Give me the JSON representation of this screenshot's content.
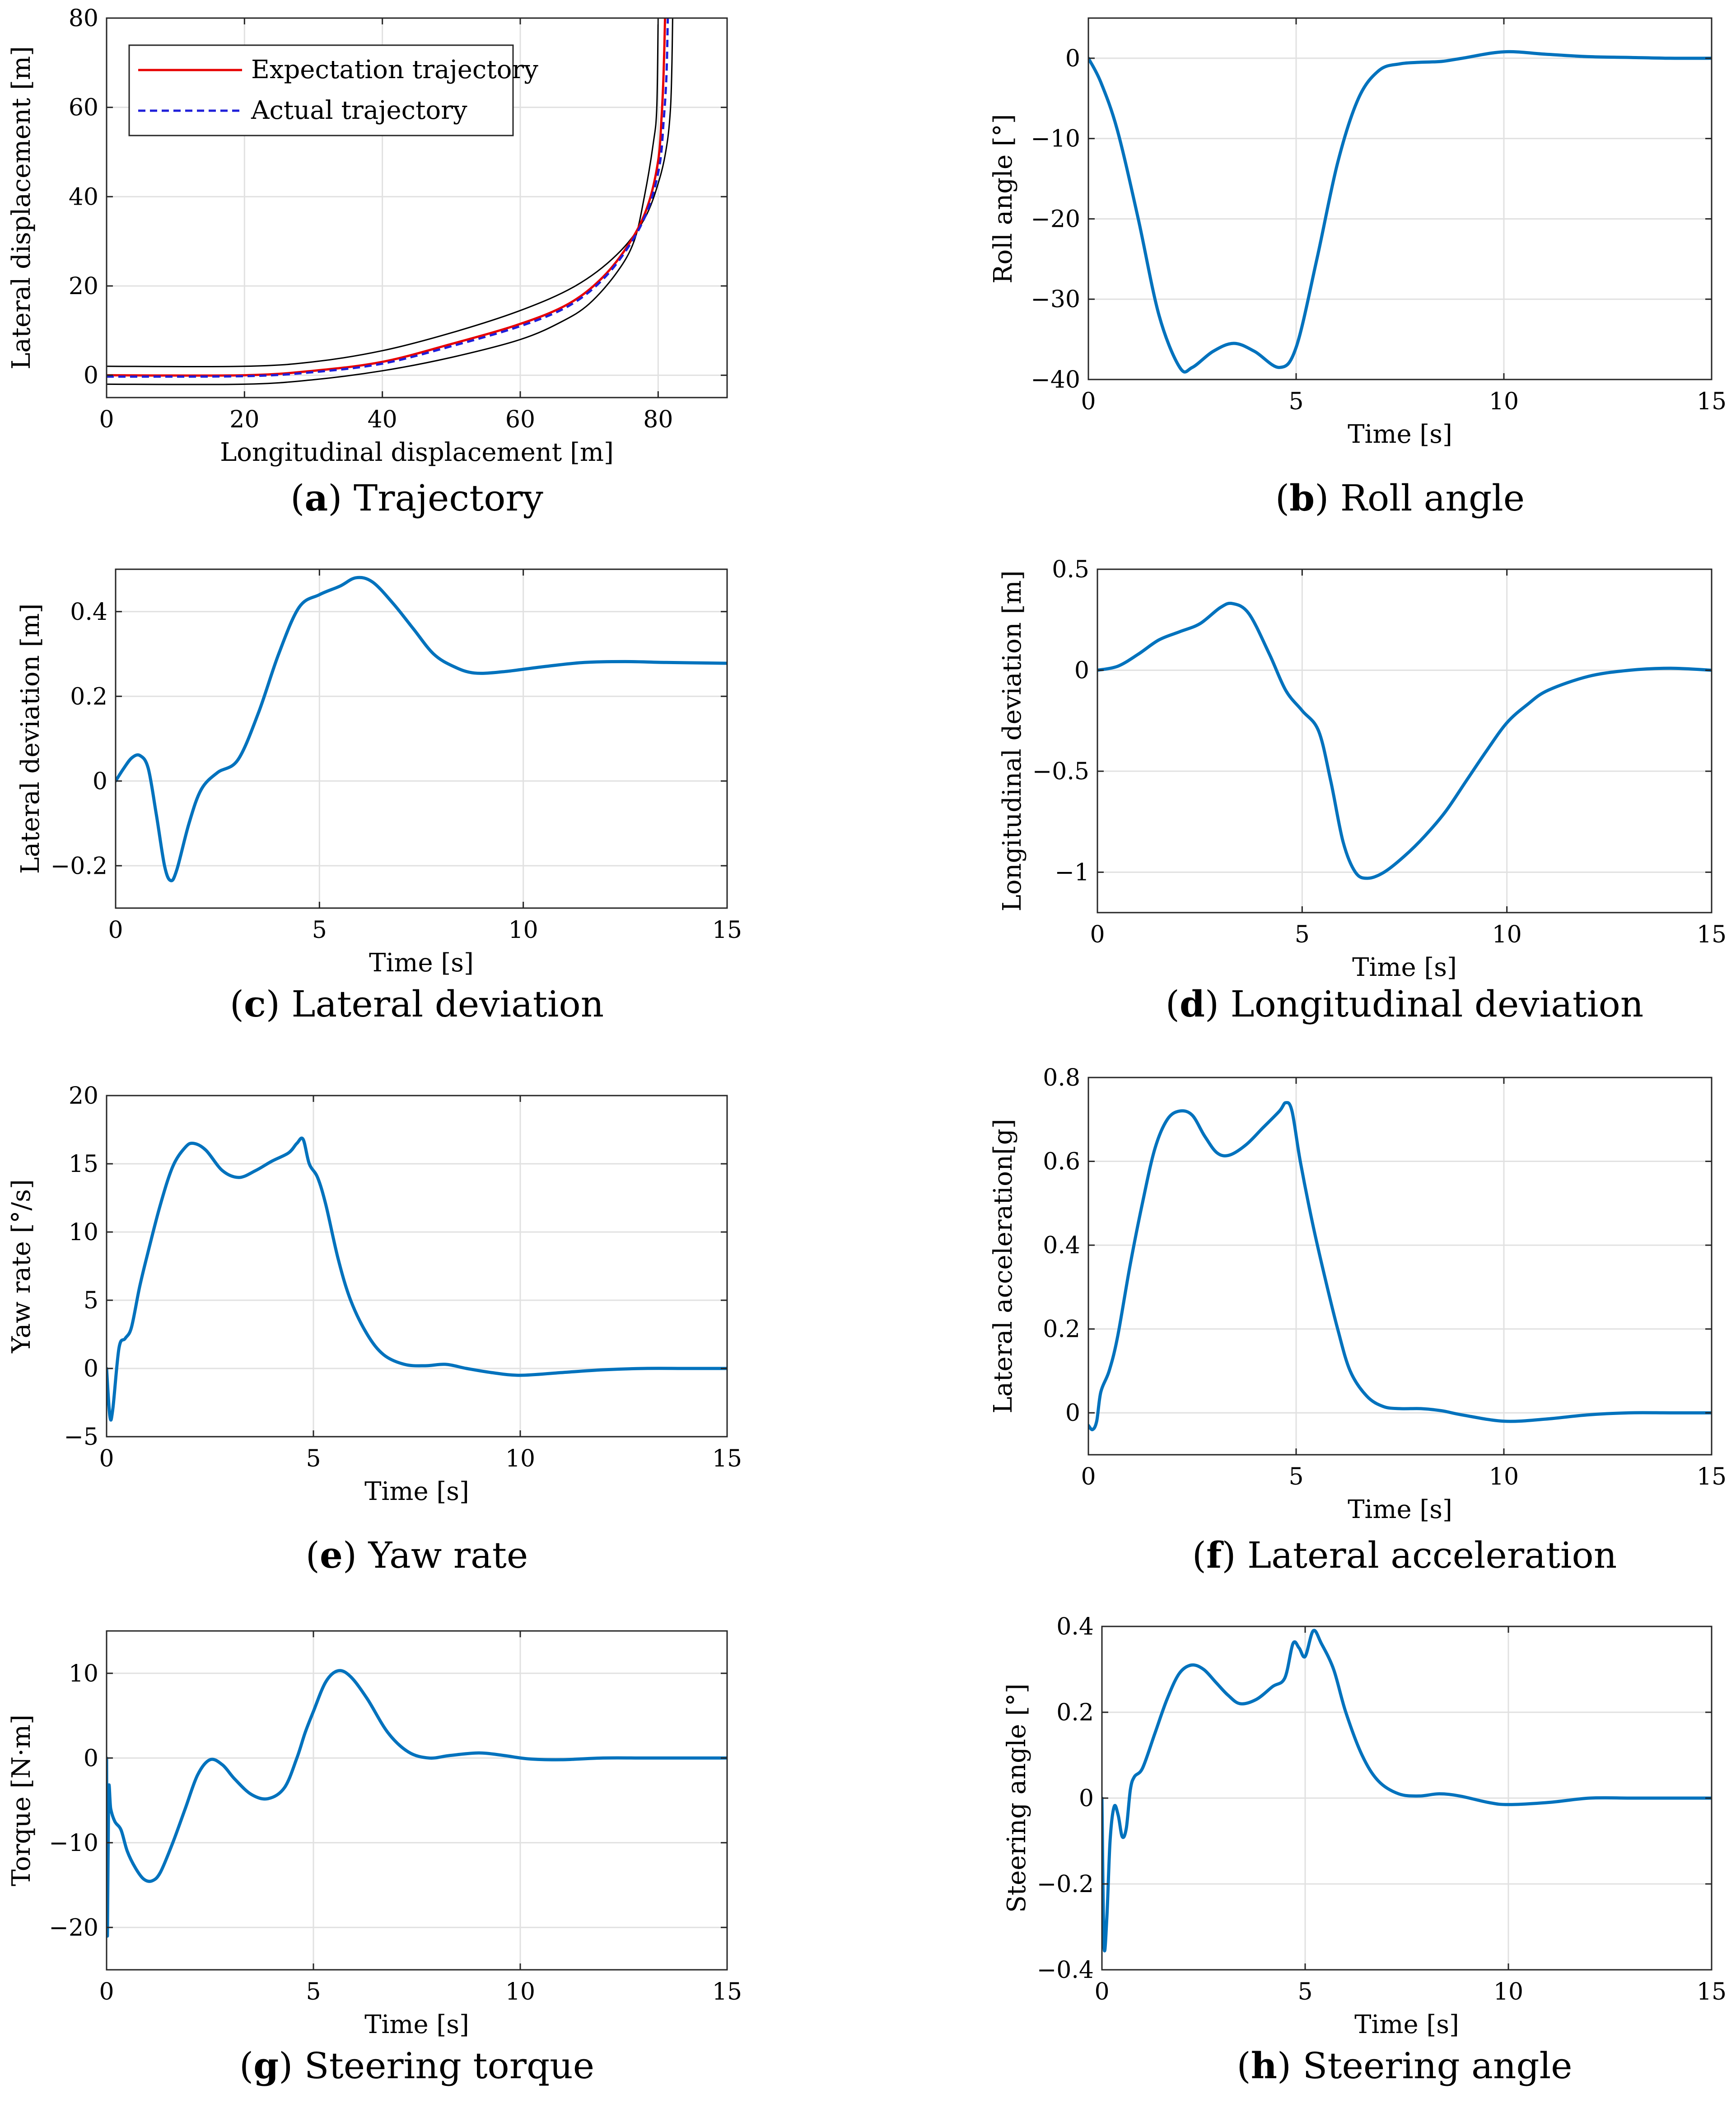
{
  "chart_data": [
    {
      "id": "a",
      "type": "line",
      "caption_letter": "a",
      "caption_text": "Trajectory",
      "xlabel": "Longitudinal displacement [m]",
      "ylabel": "Lateral displacement [m]",
      "xlim": [
        0,
        90
      ],
      "ylim": [
        -5,
        80
      ],
      "xticks": [
        0,
        20,
        40,
        60,
        80
      ],
      "xtick_labels": [
        "0",
        "20",
        "40",
        "60",
        "80"
      ],
      "yticks": [
        0,
        20,
        40,
        60,
        80
      ],
      "ytick_labels": [
        "0",
        "20",
        "40",
        "60",
        "80"
      ],
      "grid": true,
      "legend_position": "top-left",
      "series": [
        {
          "name": "road-outer-edge",
          "legend": false,
          "color": "#000000",
          "width": 3,
          "dash": "",
          "x": [
            0,
            20,
            30,
            40,
            50,
            60,
            66,
            70,
            74,
            76.5,
            78,
            79.3,
            79.8,
            80
          ],
          "y": [
            -2,
            -2,
            -1,
            1,
            4,
            8,
            12,
            16,
            23,
            30,
            40,
            52,
            60,
            80
          ]
        },
        {
          "name": "road-inner-edge",
          "legend": false,
          "color": "#000000",
          "width": 3,
          "dash": "",
          "x": [
            0,
            20,
            30,
            40,
            50,
            60,
            68,
            74,
            78,
            80.2,
            81.3,
            81.8,
            82,
            82.1
          ],
          "y": [
            2,
            2,
            3,
            5.5,
            9.5,
            14.5,
            20,
            27,
            35,
            44,
            52,
            60,
            70,
            80
          ]
        },
        {
          "name": "Expectation trajectory",
          "legend": true,
          "color": "#e60000",
          "width": 5,
          "dash": "",
          "x": [
            0,
            20,
            30,
            40,
            50,
            60,
            67,
            72,
            76,
            78.5,
            80,
            80.5,
            80.8,
            81
          ],
          "y": [
            0,
            0,
            1,
            3,
            7,
            11.5,
            16,
            22,
            30,
            38,
            48,
            58,
            68,
            80
          ]
        },
        {
          "name": "Actual trajectory",
          "legend": true,
          "color": "#1f1fd9",
          "width": 5,
          "dash": "16,10",
          "x": [
            0,
            20,
            30,
            40,
            50,
            60,
            67,
            72,
            76,
            78.6,
            80.2,
            80.8,
            81.2,
            81.4
          ],
          "y": [
            -0.3,
            -0.2,
            0.7,
            2.6,
            6.5,
            11,
            15.5,
            21.5,
            29.5,
            37.5,
            47,
            57,
            67,
            80
          ]
        }
      ]
    },
    {
      "id": "b",
      "type": "line",
      "caption_letter": "b",
      "caption_text": "Roll angle",
      "xlabel": "Time [s]",
      "ylabel": "Roll angle [°]",
      "xlim": [
        0,
        15
      ],
      "ylim": [
        -40,
        5
      ],
      "xticks": [
        0,
        5,
        10,
        15
      ],
      "xtick_labels": [
        "0",
        "5",
        "10",
        "15"
      ],
      "yticks": [
        -40,
        -30,
        -20,
        -10,
        0
      ],
      "ytick_labels": [
        "−40",
        "−30",
        "−20",
        "−10",
        "0"
      ],
      "grid": true,
      "series": [
        {
          "name": "roll",
          "color": "#0072bd",
          "width": 7,
          "x": [
            0,
            0.3,
            0.7,
            1.2,
            1.7,
            2.2,
            2.5,
            3,
            3.5,
            4,
            4.6,
            5,
            5.5,
            6,
            6.5,
            7,
            7.5,
            8,
            8.5,
            9,
            10,
            11,
            12,
            13,
            14,
            15
          ],
          "y": [
            0,
            -3,
            -9,
            -20,
            -32,
            -38.5,
            -38.5,
            -36.5,
            -35.5,
            -36.5,
            -38.5,
            -36,
            -25,
            -13,
            -5,
            -1.5,
            -0.7,
            -0.5,
            -0.4,
            0,
            0.8,
            0.5,
            0.2,
            0.1,
            0,
            0
          ]
        }
      ]
    },
    {
      "id": "c",
      "type": "line",
      "caption_letter": "c",
      "caption_text": "Lateral deviation",
      "xlabel": "Time [s]",
      "ylabel": "Lateral deviation [m]",
      "xlim": [
        0,
        15
      ],
      "ylim": [
        -0.3,
        0.5
      ],
      "xticks": [
        0,
        5,
        10,
        15
      ],
      "xtick_labels": [
        "0",
        "5",
        "10",
        "15"
      ],
      "yticks": [
        -0.2,
        0,
        0.2,
        0.4
      ],
      "ytick_labels": [
        "−0.2",
        "0",
        "0.2",
        "0.4"
      ],
      "grid": true,
      "series": [
        {
          "name": "lateral-deviation",
          "color": "#0072bd",
          "width": 7,
          "x": [
            0,
            0.2,
            0.4,
            0.6,
            0.8,
            1.0,
            1.2,
            1.35,
            1.5,
            1.8,
            2.1,
            2.5,
            3.0,
            3.5,
            4.0,
            4.5,
            5.0,
            5.5,
            5.9,
            6.3,
            6.8,
            7.3,
            7.8,
            8.3,
            8.8,
            9.5,
            10.5,
            11.5,
            12.5,
            13.5,
            15
          ],
          "y": [
            0,
            0.03,
            0.055,
            0.06,
            0.03,
            -0.08,
            -0.2,
            -0.235,
            -0.21,
            -0.1,
            -0.02,
            0.02,
            0.05,
            0.16,
            0.3,
            0.41,
            0.44,
            0.46,
            0.48,
            0.47,
            0.42,
            0.36,
            0.3,
            0.27,
            0.255,
            0.258,
            0.27,
            0.28,
            0.282,
            0.28,
            0.278
          ]
        }
      ]
    },
    {
      "id": "d",
      "type": "line",
      "caption_letter": "d",
      "caption_text": "Longitudinal deviation",
      "xlabel": "Time [s]",
      "ylabel": "Longitudinal deviation [m]",
      "xlim": [
        0,
        15
      ],
      "ylim": [
        -1.2,
        0.5
      ],
      "xticks": [
        0,
        5,
        10,
        15
      ],
      "xtick_labels": [
        "0",
        "5",
        "10",
        "15"
      ],
      "yticks": [
        -1,
        -0.5,
        0,
        0.5
      ],
      "ytick_labels": [
        "−1",
        "−0.5",
        "0",
        "0.5"
      ],
      "grid": true,
      "series": [
        {
          "name": "longitudinal-deviation",
          "color": "#0072bd",
          "width": 7,
          "x": [
            0,
            0.5,
            1,
            1.5,
            2,
            2.5,
            3,
            3.3,
            3.7,
            4.2,
            4.6,
            5,
            5.4,
            5.7,
            6,
            6.3,
            6.6,
            7,
            7.5,
            8,
            8.5,
            9,
            9.5,
            10,
            10.5,
            11,
            12,
            13,
            14,
            15
          ],
          "y": [
            0,
            0.02,
            0.08,
            0.15,
            0.19,
            0.23,
            0.31,
            0.33,
            0.28,
            0.08,
            -0.1,
            -0.2,
            -0.3,
            -0.55,
            -0.85,
            -1.0,
            -1.03,
            -1.0,
            -0.92,
            -0.82,
            -0.7,
            -0.55,
            -0.4,
            -0.26,
            -0.17,
            -0.1,
            -0.03,
            0,
            0.01,
            0
          ]
        }
      ]
    },
    {
      "id": "e",
      "type": "line",
      "caption_letter": "e",
      "caption_text": "Yaw rate",
      "xlabel": "Time [s]",
      "ylabel": "Yaw rate [°/s]",
      "xlim": [
        0,
        15
      ],
      "ylim": [
        -5,
        20
      ],
      "xticks": [
        0,
        5,
        10,
        15
      ],
      "xtick_labels": [
        "0",
        "5",
        "10",
        "15"
      ],
      "yticks": [
        -5,
        0,
        5,
        10,
        15,
        20
      ],
      "ytick_labels": [
        "−5",
        "0",
        "5",
        "10",
        "15",
        "20"
      ],
      "grid": true,
      "series": [
        {
          "name": "yaw-rate",
          "color": "#0072bd",
          "width": 7,
          "x": [
            0,
            0.08,
            0.15,
            0.3,
            0.45,
            0.6,
            0.8,
            1.0,
            1.3,
            1.6,
            1.9,
            2.1,
            2.4,
            2.8,
            3.2,
            3.6,
            4.0,
            4.4,
            4.6,
            4.75,
            4.9,
            5.1,
            5.3,
            5.6,
            5.9,
            6.3,
            6.7,
            7.2,
            7.7,
            8.2,
            8.7,
            9.3,
            10,
            11,
            12,
            13,
            14,
            15
          ],
          "y": [
            0,
            -3.5,
            -3,
            1.5,
            2.2,
            3,
            6,
            8.5,
            12,
            14.8,
            16.2,
            16.5,
            16,
            14.5,
            14,
            14.5,
            15.2,
            15.8,
            16.5,
            16.8,
            15,
            14,
            12,
            8,
            5,
            2.5,
            1,
            0.3,
            0.2,
            0.3,
            0,
            -0.3,
            -0.5,
            -0.3,
            -0.1,
            0,
            0,
            0
          ]
        }
      ]
    },
    {
      "id": "f",
      "type": "line",
      "caption_letter": "f",
      "caption_text": "Lateral acceleration",
      "xlabel": "Time [s]",
      "ylabel": "Lateral acceleration[g]",
      "xlim": [
        0,
        15
      ],
      "ylim": [
        -0.1,
        0.8
      ],
      "xticks": [
        0,
        5,
        10,
        15
      ],
      "xtick_labels": [
        "0",
        "5",
        "10",
        "15"
      ],
      "yticks": [
        0,
        0.2,
        0.4,
        0.6,
        0.8
      ],
      "ytick_labels": [
        "0",
        "0.2",
        "0.4",
        "0.6",
        "0.8"
      ],
      "grid": true,
      "series": [
        {
          "name": "lateral-acceleration",
          "color": "#0072bd",
          "width": 7,
          "x": [
            0,
            0.1,
            0.2,
            0.3,
            0.5,
            0.7,
            1.0,
            1.3,
            1.6,
            1.9,
            2.2,
            2.5,
            2.8,
            3.1,
            3.4,
            3.8,
            4.2,
            4.6,
            4.75,
            4.9,
            5.1,
            5.4,
            5.7,
            6,
            6.3,
            6.7,
            7.1,
            7.5,
            8,
            8.5,
            9,
            10,
            11,
            12,
            13,
            14,
            15
          ],
          "y": [
            -0.03,
            -0.04,
            -0.02,
            0.05,
            0.1,
            0.18,
            0.35,
            0.5,
            0.63,
            0.7,
            0.72,
            0.71,
            0.66,
            0.62,
            0.615,
            0.64,
            0.68,
            0.72,
            0.74,
            0.72,
            0.6,
            0.45,
            0.32,
            0.2,
            0.1,
            0.04,
            0.015,
            0.01,
            0.01,
            0.005,
            -0.005,
            -0.02,
            -0.015,
            -0.005,
            0,
            0,
            0
          ]
        }
      ]
    },
    {
      "id": "g",
      "type": "line",
      "caption_letter": "g",
      "caption_text": "Steering torque",
      "xlabel": "Time [s]",
      "ylabel": "Torque [N·m]",
      "xlim": [
        0,
        15
      ],
      "ylim": [
        -25,
        15
      ],
      "xticks": [
        0,
        5,
        10,
        15
      ],
      "xtick_labels": [
        "0",
        "5",
        "10",
        "15"
      ],
      "yticks": [
        -20,
        -10,
        0,
        10
      ],
      "ytick_labels": [
        "−20",
        "−10",
        "0",
        "10"
      ],
      "grid": true,
      "series": [
        {
          "name": "steering-torque",
          "color": "#0072bd",
          "width": 7,
          "x": [
            0,
            0.02,
            0.05,
            0.1,
            0.2,
            0.35,
            0.5,
            0.7,
            0.9,
            1.1,
            1.3,
            1.6,
            1.9,
            2.2,
            2.5,
            2.8,
            3.1,
            3.5,
            3.9,
            4.3,
            4.6,
            4.8,
            5.0,
            5.3,
            5.6,
            5.9,
            6.3,
            6.8,
            7.3,
            7.8,
            8.3,
            9,
            9.6,
            10.2,
            11,
            12,
            13,
            14,
            15
          ],
          "y": [
            0,
            -21,
            -4,
            -6,
            -7.5,
            -8.5,
            -11,
            -13,
            -14.3,
            -14.5,
            -13.5,
            -10,
            -6,
            -2,
            -0.2,
            -0.8,
            -2.5,
            -4.3,
            -4.8,
            -3.5,
            0,
            3,
            5.5,
            9,
            10.3,
            9.6,
            7,
            3,
            0.7,
            0,
            0.3,
            0.6,
            0.3,
            -0.1,
            -0.2,
            0,
            0,
            0,
            0
          ]
        }
      ]
    },
    {
      "id": "h",
      "type": "line",
      "caption_letter": "h",
      "caption_text": "Steering angle",
      "xlabel": "Time [s]",
      "ylabel": "Steering angle [°]",
      "xlim": [
        0,
        15
      ],
      "ylim": [
        -0.4,
        0.4
      ],
      "xticks": [
        0,
        5,
        10,
        15
      ],
      "xtick_labels": [
        "0",
        "5",
        "10",
        "15"
      ],
      "yticks": [
        -0.4,
        -0.2,
        0,
        0.2,
        0.4
      ],
      "ytick_labels": [
        "−0.4",
        "−0.2",
        "0",
        "0.2",
        "0.4"
      ],
      "grid": true,
      "series": [
        {
          "name": "steering-angle",
          "color": "#0072bd",
          "width": 7,
          "x": [
            0,
            0.05,
            0.12,
            0.2,
            0.3,
            0.4,
            0.5,
            0.6,
            0.7,
            0.8,
            1.0,
            1.3,
            1.6,
            1.9,
            2.2,
            2.5,
            2.8,
            3.1,
            3.4,
            3.8,
            4.2,
            4.5,
            4.7,
            4.85,
            5.0,
            5.2,
            5.4,
            5.7,
            6.0,
            6.4,
            6.8,
            7.3,
            7.8,
            8.3,
            8.8,
            9.5,
            10,
            11,
            12,
            13,
            14,
            15
          ],
          "y": [
            0,
            -0.34,
            -0.28,
            -0.1,
            -0.02,
            -0.04,
            -0.09,
            -0.07,
            0.02,
            0.05,
            0.07,
            0.15,
            0.23,
            0.29,
            0.31,
            0.3,
            0.27,
            0.24,
            0.22,
            0.23,
            0.26,
            0.28,
            0.36,
            0.35,
            0.33,
            0.39,
            0.36,
            0.3,
            0.2,
            0.1,
            0.04,
            0.01,
            0.005,
            0.01,
            0.005,
            -0.01,
            -0.015,
            -0.01,
            0,
            0,
            0,
            0
          ]
        }
      ]
    }
  ]
}
